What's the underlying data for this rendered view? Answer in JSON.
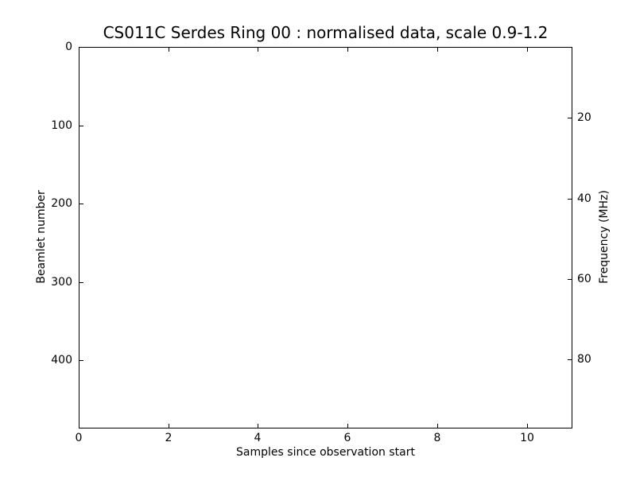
{
  "window": {
    "background": "#ffffff"
  },
  "chart_data": {
    "type": "heatmap",
    "title": "CS011C Serdes Ring 00 : normalised data, scale 0.9-1.2",
    "xlabel": "Samples since observation start",
    "ylabel_left": "Beamlet number",
    "ylabel_right": "Frequency (MHz)",
    "xlim": [
      0,
      11
    ],
    "ylim_left_top_to_bottom": [
      0,
      486
    ],
    "ylim_right_top_to_bottom": [
      2.4,
      96.9
    ],
    "x_ticks": [
      0,
      2,
      4,
      6,
      8,
      10
    ],
    "y_ticks_left": [
      0,
      100,
      200,
      300,
      400
    ],
    "y_ticks_right": [
      20,
      40,
      60,
      80
    ],
    "grid": false,
    "legend": null,
    "axis_color": "#000000",
    "text_color": "#000000",
    "plot_background": "#ffffff",
    "values": [],
    "note": "plot interior renders blank white; no data values visible"
  }
}
